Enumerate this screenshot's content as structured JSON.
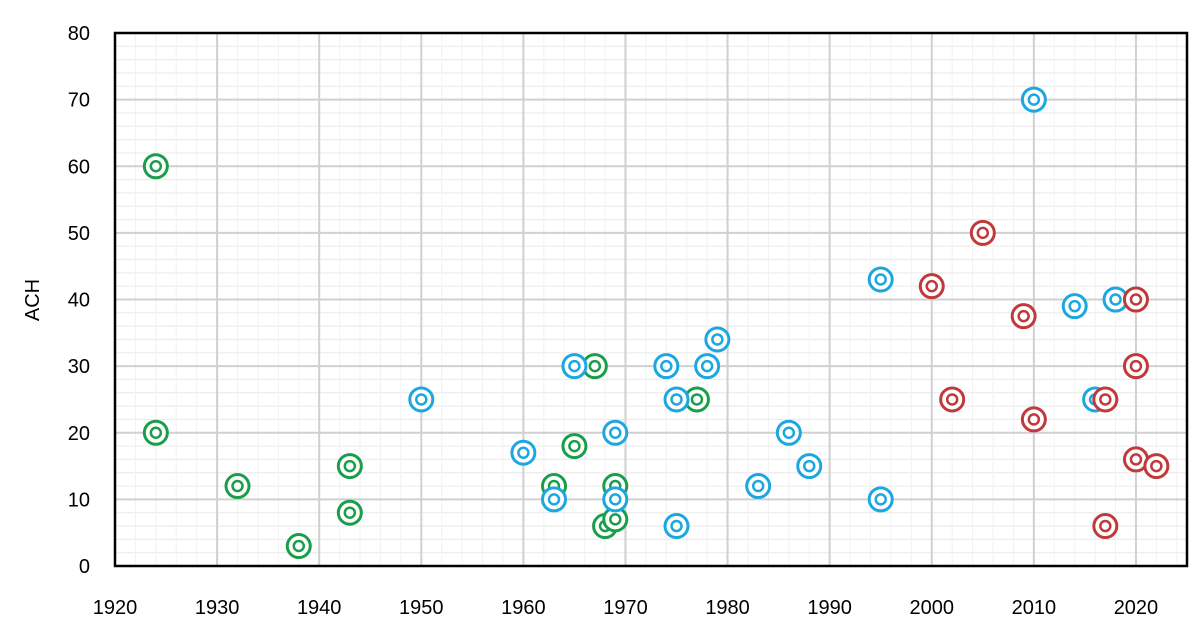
{
  "chart_data": {
    "type": "scatter",
    "title": "",
    "xlabel": "",
    "ylabel": "ACH",
    "xlim": [
      1920,
      2025
    ],
    "ylim": [
      0,
      80
    ],
    "xticks": [
      1920,
      1930,
      1940,
      1950,
      1960,
      1970,
      1980,
      1990,
      2000,
      2010,
      2020
    ],
    "yticks": [
      0,
      10,
      20,
      30,
      40,
      50,
      60,
      70,
      80
    ],
    "grid": true,
    "legend": "none",
    "series": [
      {
        "color": "#1b9e4b",
        "marker": "double-ring",
        "points": [
          {
            "x": 1924,
            "y": 60
          },
          {
            "x": 1924,
            "y": 20
          },
          {
            "x": 1932,
            "y": 12
          },
          {
            "x": 1938,
            "y": 3
          },
          {
            "x": 1943,
            "y": 15
          },
          {
            "x": 1943,
            "y": 8
          },
          {
            "x": 1963,
            "y": 12
          },
          {
            "x": 1965,
            "y": 18
          },
          {
            "x": 1967,
            "y": 30
          },
          {
            "x": 1968,
            "y": 6
          },
          {
            "x": 1969,
            "y": 7
          },
          {
            "x": 1969,
            "y": 12
          },
          {
            "x": 1977,
            "y": 25
          }
        ]
      },
      {
        "color": "#1ca7e0",
        "marker": "double-ring",
        "points": [
          {
            "x": 1950,
            "y": 25
          },
          {
            "x": 1960,
            "y": 17
          },
          {
            "x": 1963,
            "y": 10
          },
          {
            "x": 1965,
            "y": 30
          },
          {
            "x": 1969,
            "y": 20
          },
          {
            "x": 1969,
            "y": 10
          },
          {
            "x": 1974,
            "y": 30
          },
          {
            "x": 1975,
            "y": 25
          },
          {
            "x": 1975,
            "y": 6
          },
          {
            "x": 1978,
            "y": 30
          },
          {
            "x": 1979,
            "y": 34
          },
          {
            "x": 1983,
            "y": 12
          },
          {
            "x": 1986,
            "y": 20
          },
          {
            "x": 1988,
            "y": 15
          },
          {
            "x": 1995,
            "y": 43
          },
          {
            "x": 1995,
            "y": 10
          },
          {
            "x": 2010,
            "y": 70
          },
          {
            "x": 2014,
            "y": 39
          },
          {
            "x": 2016,
            "y": 25
          },
          {
            "x": 2018,
            "y": 40
          }
        ]
      },
      {
        "color": "#c0393b",
        "marker": "double-ring",
        "points": [
          {
            "x": 2000,
            "y": 42
          },
          {
            "x": 2002,
            "y": 25
          },
          {
            "x": 2005,
            "y": 50
          },
          {
            "x": 2009,
            "y": 37.5
          },
          {
            "x": 2010,
            "y": 22
          },
          {
            "x": 2017,
            "y": 25
          },
          {
            "x": 2017,
            "y": 6
          },
          {
            "x": 2020,
            "y": 40
          },
          {
            "x": 2020,
            "y": 30
          },
          {
            "x": 2020,
            "y": 16
          },
          {
            "x": 2022,
            "y": 15
          }
        ]
      }
    ]
  }
}
